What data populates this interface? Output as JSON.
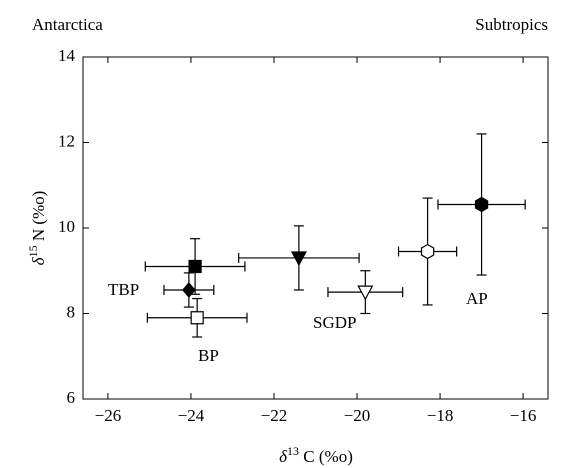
{
  "chart_data": {
    "type": "scatter",
    "top_labels": [
      "Antarctica",
      "Subtropics"
    ],
    "x_label": {
      "symbol": "δ",
      "superscript": "13",
      "text": " C (%o)"
    },
    "y_label": {
      "symbol": "δ",
      "superscript": "15",
      "text": " N (%o)"
    },
    "xlim": [
      -26.6,
      -15.4
    ],
    "ylim": [
      6,
      14
    ],
    "xticks": [
      {
        "value": -26,
        "label": "−26"
      },
      {
        "value": -24,
        "label": "−24"
      },
      {
        "value": -22,
        "label": "−22"
      },
      {
        "value": -20,
        "label": "−20"
      },
      {
        "value": -18,
        "label": "−18"
      },
      {
        "value": -16,
        "label": "−16"
      }
    ],
    "yticks": [
      6,
      8,
      10,
      12,
      14
    ],
    "grid": false,
    "color": "#000000",
    "series": [
      {
        "x": -23.9,
        "y": 9.1,
        "xerr": 1.2,
        "yerr": 0.65,
        "marker": "square",
        "filled": true
      },
      {
        "x": -24.05,
        "y": 8.55,
        "xerr": 0.6,
        "yerr": 0.4,
        "marker": "diamond",
        "filled": true
      },
      {
        "x": -23.85,
        "y": 7.9,
        "xerr": 1.2,
        "yerr": 0.45,
        "marker": "square",
        "filled": false
      },
      {
        "x": -21.4,
        "y": 9.3,
        "xerr": 1.45,
        "yerr": 0.75,
        "marker": "triangle-down",
        "filled": true
      },
      {
        "x": -19.8,
        "y": 8.5,
        "xerr": 0.9,
        "yerr": 0.5,
        "marker": "triangle-down",
        "filled": false
      },
      {
        "x": -18.3,
        "y": 9.45,
        "xerr": 0.7,
        "yerr": 1.25,
        "marker": "hexagon",
        "filled": false
      },
      {
        "x": -17.0,
        "y": 10.55,
        "xerr": 1.05,
        "yerr": 1.65,
        "marker": "hexagon",
        "filled": true
      }
    ],
    "annotations": [
      "TBP",
      "BP",
      "SGDP",
      "AP"
    ]
  }
}
